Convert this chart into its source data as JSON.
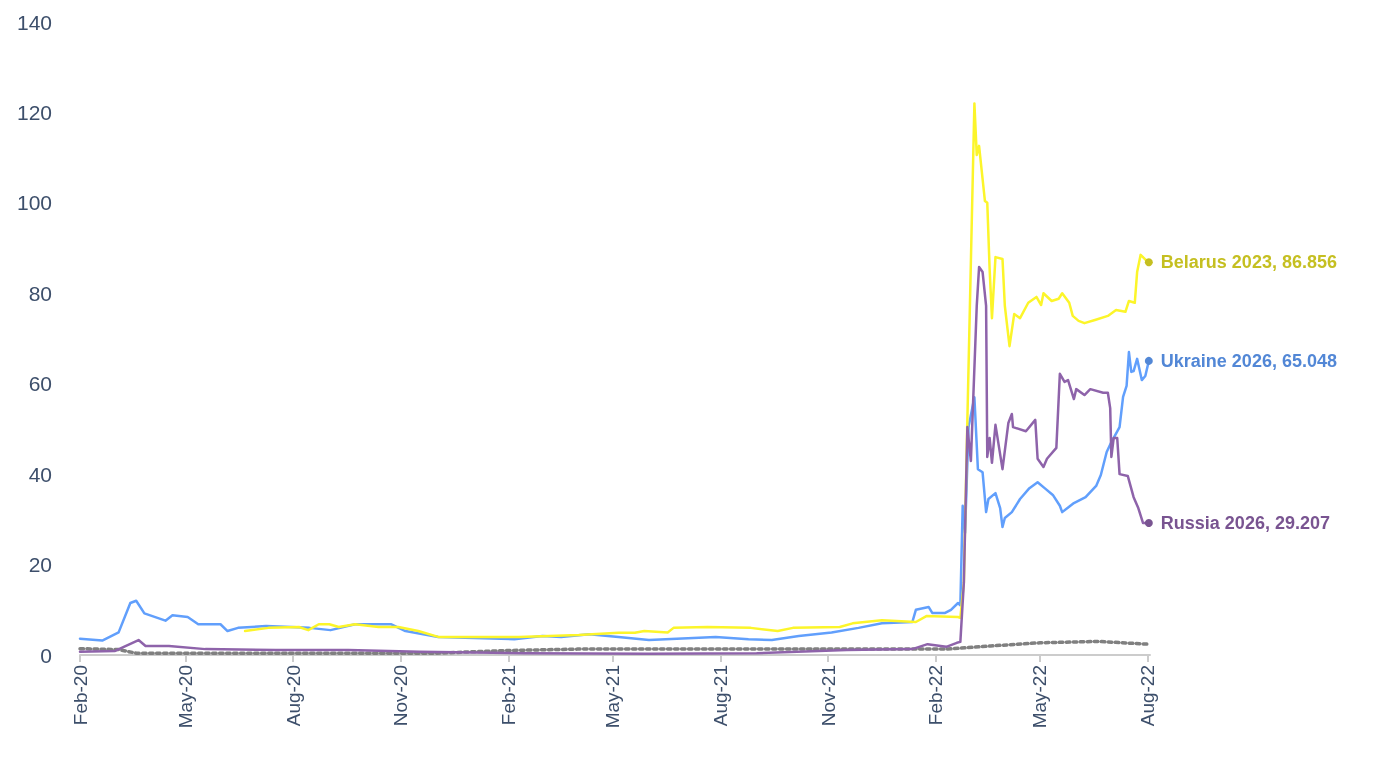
{
  "chart_data": {
    "type": "line",
    "xlim": [
      "2020-02-01",
      "2022-08-03"
    ],
    "ylim": [
      0,
      140
    ],
    "yticks": [
      0,
      20,
      40,
      60,
      80,
      100,
      120,
      140
    ],
    "xticks": [
      {
        "value": "2020-02-01",
        "label": "Feb-20"
      },
      {
        "value": "2020-05-01",
        "label": "May-20"
      },
      {
        "value": "2020-08-01",
        "label": "Aug-20"
      },
      {
        "value": "2020-11-01",
        "label": "Nov-20"
      },
      {
        "value": "2021-02-01",
        "label": "Feb-21"
      },
      {
        "value": "2021-05-01",
        "label": "May-21"
      },
      {
        "value": "2021-08-01",
        "label": "Aug-21"
      },
      {
        "value": "2021-11-01",
        "label": "Nov-21"
      },
      {
        "value": "2022-02-01",
        "label": "Feb-22"
      },
      {
        "value": "2022-05-01",
        "label": "May-22"
      },
      {
        "value": "2022-08-01",
        "label": "Aug-22"
      }
    ],
    "grid": false,
    "marker": "none",
    "series": [
      {
        "type": "line",
        "line_style": "dotted",
        "color": "#808080",
        "x": [
          "2020-02-01",
          "2020-03-05",
          "2020-03-20",
          "2020-12-01",
          "2021-02-01",
          "2021-04-01",
          "2022-02-10",
          "2022-03-20",
          "2022-05-01",
          "2022-06-20",
          "2022-08-01"
        ],
        "values": [
          1.4,
          1.2,
          0.4,
          0.4,
          1,
          1.3,
          1.3,
          2,
          2.7,
          3,
          2.4
        ]
      },
      {
        "color": "#619ffc",
        "x": [
          "2020-02-01",
          "2020-02-20",
          "2020-03-05",
          "2020-03-15",
          "2020-03-20",
          "2020-03-27",
          "2020-04-14",
          "2020-04-20",
          "2020-05-03",
          "2020-05-12",
          "2020-05-31",
          "2020-06-06",
          "2020-06-15",
          "2020-07-09",
          "2020-08-15",
          "2020-09-02",
          "2020-09-23",
          "2020-10-24",
          "2020-11-05",
          "2020-12-03",
          "2021-02-06",
          "2021-03-02",
          "2021-03-18",
          "2021-04-11",
          "2021-05-06",
          "2021-06-01",
          "2021-07-28",
          "2021-08-25",
          "2021-09-14",
          "2021-10-07",
          "2021-11-04",
          "2021-11-27",
          "2021-12-17",
          "2022-01-12",
          "2022-01-15",
          "2022-01-26",
          "2022-01-29",
          "2022-02-09",
          "2022-02-14",
          "2022-02-20",
          "2022-02-22",
          "2022-02-24",
          "2022-02-26",
          "2022-03-01",
          "2022-03-06",
          "2022-03-09",
          "2022-03-13",
          "2022-03-16",
          "2022-03-18",
          "2022-03-24",
          "2022-03-28",
          "2022-03-30",
          "2022-04-01",
          "2022-04-07",
          "2022-04-14",
          "2022-04-22",
          "2022-04-29",
          "2022-05-05",
          "2022-05-12",
          "2022-05-18",
          "2022-05-20",
          "2022-05-30",
          "2022-06-09",
          "2022-06-18",
          "2022-06-22",
          "2022-06-27",
          "2022-07-01",
          "2022-07-08",
          "2022-07-11",
          "2022-07-14",
          "2022-07-16",
          "2022-07-18",
          "2022-07-20",
          "2022-07-23",
          "2022-07-27",
          "2022-07-30",
          "2022-08-02"
        ],
        "values": [
          3.6,
          3.2,
          5,
          11.5,
          12,
          9.2,
          7.6,
          8.8,
          8.4,
          6.8,
          6.8,
          5.3,
          6,
          6.4,
          6,
          5.5,
          6.8,
          6.8,
          5.3,
          4,
          3.5,
          4.2,
          4,
          4.6,
          4,
          3.3,
          4,
          3.5,
          3.3,
          4.2,
          5,
          6,
          7,
          7.3,
          10,
          10.6,
          9.3,
          9.3,
          10,
          11.5,
          11,
          33,
          27,
          50.4,
          57,
          41.1,
          40.4,
          31.6,
          34.5,
          35.8,
          32.5,
          28.3,
          30.3,
          31.6,
          34.5,
          36.9,
          38.2,
          36.9,
          35.4,
          33,
          31.6,
          33.6,
          34.9,
          37.4,
          39.8,
          44.9,
          47.1,
          50.4,
          57.1,
          59.5,
          67,
          62.6,
          62.8,
          65.5,
          60.8,
          61.7,
          65.048
        ],
        "value_labels": [
          null,
          null,
          null,
          null,
          null,
          null,
          null,
          null,
          null,
          null,
          null,
          null,
          null,
          null,
          null,
          null,
          null,
          null,
          null,
          null,
          null,
          null,
          null,
          null,
          null,
          null,
          null,
          null,
          null,
          null,
          null,
          null,
          null,
          null,
          null,
          null,
          null,
          null,
          null,
          null,
          null,
          null,
          null,
          null,
          null,
          null,
          null,
          null,
          null,
          null,
          null,
          null,
          null,
          null,
          null,
          null,
          null,
          null,
          null,
          null,
          null,
          null,
          null,
          null,
          null,
          null,
          null,
          null,
          null,
          null,
          null,
          null,
          null,
          null,
          null,
          null,
          "Ukraine 2026, 65.048"
        ]
      },
      {
        "color": "#fcf52a",
        "x": [
          "2020-06-21",
          "2020-07-11",
          "2020-08-06",
          "2020-08-14",
          "2020-08-23",
          "2020-09-01",
          "2020-09-09",
          "2020-09-23",
          "2020-10-13",
          "2020-10-30",
          "2020-11-16",
          "2020-12-03",
          "2021-02-10",
          "2021-04-02",
          "2021-05-06",
          "2021-05-20",
          "2021-05-28",
          "2021-06-17",
          "2021-06-22",
          "2021-07-21",
          "2021-08-27",
          "2021-09-19",
          "2021-10-02",
          "2021-11-11",
          "2021-11-22",
          "2021-12-17",
          "2022-01-15",
          "2022-01-24",
          "2022-02-20",
          "2022-02-22",
          "2022-02-25",
          "2022-02-28",
          "2022-03-06",
          "2022-03-08",
          "2022-03-10",
          "2022-03-15",
          "2022-03-17",
          "2022-03-19",
          "2022-03-21",
          "2022-03-24",
          "2022-03-30",
          "2022-04-01",
          "2022-04-05",
          "2022-04-09",
          "2022-04-14",
          "2022-04-21",
          "2022-04-28",
          "2022-05-02",
          "2022-05-04",
          "2022-05-11",
          "2022-05-17",
          "2022-05-20",
          "2022-05-26",
          "2022-05-29",
          "2022-06-03",
          "2022-06-08",
          "2022-06-17",
          "2022-06-28",
          "2022-07-05",
          "2022-07-13",
          "2022-07-16",
          "2022-07-21",
          "2022-07-23",
          "2022-07-26",
          "2022-07-31",
          "2022-08-02"
        ],
        "values": [
          5.3,
          6,
          6.2,
          5.5,
          6.8,
          6.8,
          6.2,
          6.8,
          6.2,
          6.2,
          5.3,
          4,
          4,
          4.4,
          4.9,
          4.9,
          5.3,
          5,
          6,
          6.2,
          6,
          5.3,
          6,
          6.2,
          7,
          7.7,
          7.3,
          8.6,
          8.4,
          8.2,
          16,
          52,
          122,
          110.6,
          112.6,
          100.4,
          100,
          85.4,
          74.5,
          88,
          87.6,
          77.2,
          68.3,
          75.4,
          74.5,
          77.9,
          79.2,
          77.4,
          80,
          78.3,
          78.8,
          80,
          77.9,
          75,
          73.9,
          73.4,
          74.1,
          75,
          76.3,
          75.9,
          78.3,
          77.9,
          84.7,
          88.5,
          87.2,
          86.856
        ],
        "value_labels": [
          null,
          null,
          null,
          null,
          null,
          null,
          null,
          null,
          null,
          null,
          null,
          null,
          null,
          null,
          null,
          null,
          null,
          null,
          null,
          null,
          null,
          null,
          null,
          null,
          null,
          null,
          null,
          null,
          null,
          null,
          null,
          null,
          null,
          null,
          null,
          null,
          null,
          null,
          null,
          null,
          null,
          null,
          null,
          null,
          null,
          null,
          null,
          null,
          null,
          null,
          null,
          null,
          null,
          null,
          null,
          null,
          null,
          null,
          null,
          null,
          null,
          null,
          null,
          null,
          null,
          "Belarus 2023, 86.856"
        ]
      },
      {
        "color": "#8e63aa",
        "x": [
          "2020-02-01",
          "2020-03-02",
          "2020-03-22",
          "2020-03-28",
          "2020-04-17",
          "2020-05-18",
          "2020-07-17",
          "2020-09-17",
          "2020-11-17",
          "2021-02-15",
          "2021-06-01",
          "2021-09-01",
          "2021-11-17",
          "2022-01-12",
          "2022-01-25",
          "2022-02-10",
          "2022-02-19",
          "2022-02-22",
          "2022-02-25",
          "2022-02-28",
          "2022-03-03",
          "2022-03-08",
          "2022-03-10",
          "2022-03-13",
          "2022-03-16",
          "2022-03-17",
          "2022-03-19",
          "2022-03-21",
          "2022-03-24",
          "2022-03-30",
          "2022-04-04",
          "2022-04-07",
          "2022-04-08",
          "2022-04-19",
          "2022-04-27",
          "2022-04-29",
          "2022-05-04",
          "2022-05-07",
          "2022-05-15",
          "2022-05-18",
          "2022-05-22",
          "2022-05-25",
          "2022-05-30",
          "2022-06-01",
          "2022-06-08",
          "2022-06-13",
          "2022-06-24",
          "2022-06-28",
          "2022-06-30",
          "2022-07-01",
          "2022-07-03",
          "2022-07-06",
          "2022-07-08",
          "2022-07-15",
          "2022-07-20",
          "2022-07-24",
          "2022-07-28",
          "2022-08-02"
        ],
        "values": [
          0.7,
          0.9,
          3.3,
          2,
          2,
          1.3,
          1.1,
          1.1,
          0.7,
          0.4,
          0.3,
          0.4,
          1.1,
          1.3,
          2.4,
          1.8,
          2.7,
          2.9,
          16,
          50.4,
          42.9,
          77.2,
          85.8,
          84.7,
          77.2,
          43.8,
          48,
          42.5,
          50.9,
          41.1,
          51.3,
          53.3,
          50.4,
          49.5,
          52,
          43.4,
          41.6,
          43.4,
          45.8,
          62.2,
          60.4,
          60.8,
          56.6,
          58.8,
          57.5,
          58.8,
          58,
          58,
          54.6,
          43.8,
          48,
          48,
          40,
          39.6,
          34.9,
          32.5,
          29.2,
          29.207
        ],
        "value_labels": [
          null,
          null,
          null,
          null,
          null,
          null,
          null,
          null,
          null,
          null,
          null,
          null,
          null,
          null,
          null,
          null,
          null,
          null,
          null,
          null,
          null,
          null,
          null,
          null,
          null,
          null,
          null,
          null,
          null,
          null,
          null,
          null,
          null,
          null,
          null,
          null,
          null,
          null,
          null,
          null,
          null,
          null,
          null,
          null,
          null,
          null,
          null,
          null,
          null,
          null,
          null,
          null,
          null,
          null,
          null,
          null,
          null,
          "Russia 2026, 29.207"
        ]
      }
    ]
  }
}
